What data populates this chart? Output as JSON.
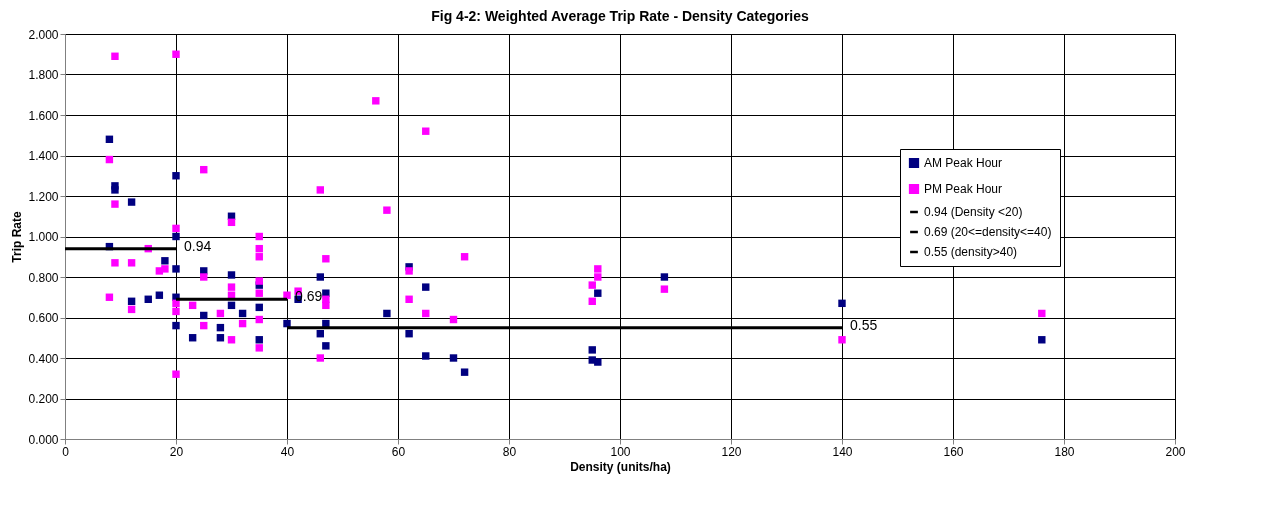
{
  "chart_data": {
    "type": "scatter",
    "title": "Fig 4-2: Weighted Average Trip Rate - Density Categories",
    "xlabel": "Density (units/ha)",
    "ylabel": "Trip Rate",
    "xlim": [
      0,
      200
    ],
    "xticks": [
      0,
      20,
      40,
      60,
      80,
      100,
      120,
      140,
      160,
      180,
      200
    ],
    "ylim": [
      0,
      2
    ],
    "yticks": [
      {
        "value": 0,
        "label": "0.000"
      },
      {
        "value": 0.2,
        "label": "0.200"
      },
      {
        "value": 0.4,
        "label": "0.400"
      },
      {
        "value": 0.6,
        "label": "0.600"
      },
      {
        "value": 0.8,
        "label": "0.800"
      },
      {
        "value": 1.0,
        "label": "1.000"
      },
      {
        "value": 1.2,
        "label": "1.200"
      },
      {
        "value": 1.4,
        "label": "1.400"
      },
      {
        "value": 1.6,
        "label": "1.600"
      },
      {
        "value": 1.8,
        "label": "1.800"
      },
      {
        "value": 2.0,
        "label": "2.000"
      }
    ],
    "grid": true,
    "legend": "top right",
    "series": [
      {
        "name": "AM Peak Hour",
        "marker": "square",
        "color": "#000080",
        "x": [
          8,
          8,
          9,
          9,
          12,
          12,
          15,
          17,
          18,
          20,
          20,
          20,
          20,
          20,
          23,
          25,
          25,
          28,
          28,
          30,
          30,
          30,
          32,
          35,
          35,
          35,
          40,
          42,
          46,
          46,
          47,
          47,
          47,
          58,
          62,
          62,
          65,
          65,
          70,
          72,
          95,
          95,
          96,
          96,
          108,
          140,
          176
        ],
        "values": [
          1.48,
          0.95,
          1.25,
          1.23,
          1.17,
          0.68,
          0.69,
          0.71,
          0.88,
          1.3,
          1.0,
          0.84,
          0.7,
          0.56,
          0.5,
          0.83,
          0.61,
          0.55,
          0.5,
          1.1,
          0.81,
          0.66,
          0.62,
          0.76,
          0.65,
          0.49,
          0.57,
          0.69,
          0.8,
          0.52,
          0.72,
          0.57,
          0.46,
          0.62,
          0.85,
          0.52,
          0.75,
          0.41,
          0.4,
          0.33,
          0.44,
          0.39,
          0.72,
          0.38,
          0.8,
          0.67,
          0.49
        ]
      },
      {
        "name": "PM Peak Hour",
        "marker": "square",
        "color": "#ff00ff",
        "x": [
          8,
          8,
          9,
          9,
          9,
          12,
          12,
          15,
          17,
          18,
          20,
          20,
          20,
          20,
          20,
          23,
          25,
          25,
          25,
          28,
          30,
          30,
          30,
          30,
          32,
          35,
          35,
          35,
          35,
          35,
          35,
          35,
          40,
          42,
          46,
          46,
          47,
          47,
          47,
          56,
          58,
          62,
          62,
          65,
          65,
          70,
          72,
          95,
          95,
          96,
          96,
          108,
          140,
          176
        ],
        "values": [
          1.38,
          0.7,
          1.89,
          1.16,
          0.87,
          0.87,
          0.64,
          0.94,
          0.83,
          0.84,
          1.9,
          1.04,
          0.67,
          0.63,
          0.32,
          0.66,
          1.33,
          0.8,
          0.56,
          0.62,
          1.07,
          0.75,
          0.71,
          0.49,
          0.57,
          1.0,
          0.94,
          0.9,
          0.78,
          0.72,
          0.59,
          0.45,
          0.71,
          0.73,
          1.23,
          0.4,
          0.89,
          0.69,
          0.66,
          1.67,
          1.13,
          0.83,
          0.69,
          1.52,
          0.62,
          0.59,
          0.9,
          0.76,
          0.68,
          0.84,
          0.8,
          0.74,
          0.49,
          0.62
        ]
      },
      {
        "name": "0.94 (Density <20)",
        "type": "line",
        "marker": "none",
        "color": "#000000",
        "x": [
          0,
          20
        ],
        "values": [
          0.94,
          0.94
        ]
      },
      {
        "name": "0.69 (20<=density<=40)",
        "type": "line",
        "marker": "none",
        "color": "#000000",
        "x": [
          20,
          40
        ],
        "values": [
          0.69,
          0.69
        ]
      },
      {
        "name": "0.55 (density>40)",
        "type": "line",
        "marker": "none",
        "color": "#000000",
        "x": [
          40,
          140
        ],
        "values": [
          0.55,
          0.55
        ]
      }
    ],
    "annotations": [
      {
        "text": "0.94",
        "x": 20,
        "y": 0.94
      },
      {
        "text": "0.69",
        "x": 40,
        "y": 0.69
      },
      {
        "text": "0.55",
        "x": 140,
        "y": 0.55
      }
    ]
  }
}
